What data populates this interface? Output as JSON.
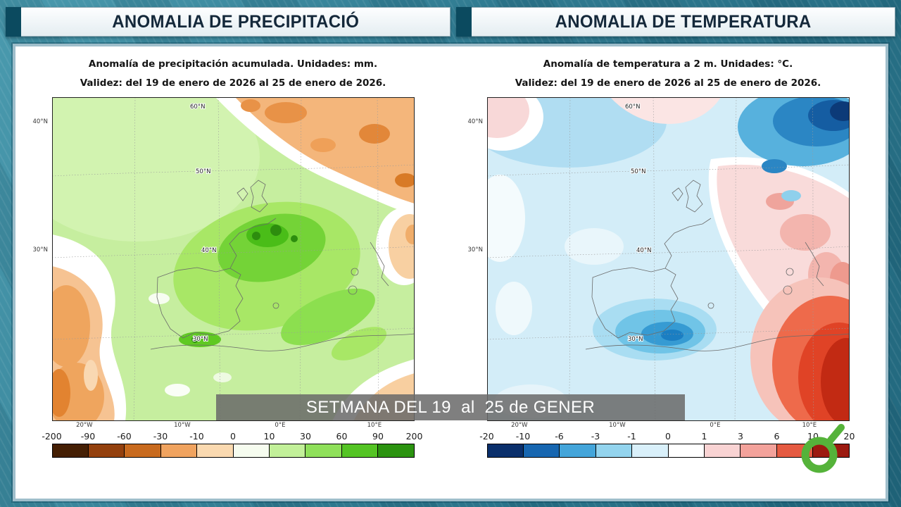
{
  "colors": {
    "background_teal": "#38849a",
    "header_square": "#0b4a5f",
    "header_text": "#14283a",
    "panel_border": "#9fbecb",
    "banner_background": "rgba(104,104,104,0.85)",
    "banner_text": "#ffffff",
    "logo_green": "#55b33a"
  },
  "headers": {
    "left": "ANOMALIA DE PRECIPITACIÓ",
    "right": "ANOMALIA DE TEMPERATURA"
  },
  "panels": {
    "precipitation": {
      "title": "Anomalía de precipitación acumulada. Unidades: mm.",
      "validity": "Validez: del 19 de enero de 2026 al 25 de enero de 2026.",
      "scale": {
        "units": "mm",
        "ticks": [
          "-200",
          "-90",
          "-60",
          "-30",
          "-10",
          "0",
          "10",
          "30",
          "60",
          "90",
          "200"
        ],
        "colors": [
          "#451f04",
          "#93400d",
          "#c86a1e",
          "#f0a35f",
          "#fad9b0",
          "#f6fcef",
          "#c2f099",
          "#8fe05a",
          "#54c424",
          "#2b9310"
        ]
      },
      "axis": {
        "left": [
          "40°N",
          "30°N"
        ],
        "bottom": [
          "20°W",
          "10°W",
          "0°E",
          "10°E"
        ],
        "inner": [
          "60°N",
          "50°N",
          "40°N",
          "30°N"
        ]
      }
    },
    "temperature": {
      "title": "Anomalía de temperatura a 2 m. Unidades: °C.",
      "validity": "Validez: del 19 de enero de 2026 al 25 de enero de 2026.",
      "scale": {
        "units": "°C",
        "ticks": [
          "-20",
          "-10",
          "-6",
          "-3",
          "-1",
          "0",
          "1",
          "3",
          "6",
          "10",
          "20"
        ],
        "colors": [
          "#0a2f6b",
          "#1766b0",
          "#44a5da",
          "#93d4ee",
          "#d9f0fa",
          "#ffffff",
          "#f9d3d3",
          "#f3a29b",
          "#e55a41",
          "#9c1a10"
        ]
      },
      "axis": {
        "left": [
          "40°N",
          "30°N"
        ],
        "bottom": [
          "20°W",
          "10°W",
          "0°E",
          "10°E"
        ],
        "inner": [
          "60°N",
          "50°N",
          "40°N",
          "30°N"
        ]
      }
    }
  },
  "banner": {
    "text": "SETMANA DEL 19  al  25 de GENER"
  },
  "logo": {
    "name": "lasexta-logo"
  }
}
